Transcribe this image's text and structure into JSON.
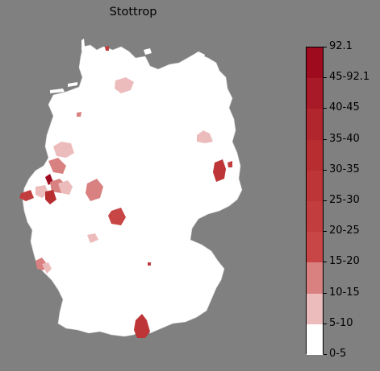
{
  "map": {
    "title": "Stottrop"
  },
  "legend": {
    "labels_top_to_bottom": [
      "92.1",
      "45-92.1",
      "40-45",
      "35-40",
      "30-35",
      "25-30",
      "20-25",
      "15-20",
      "10-15",
      "5-10",
      "0-5"
    ],
    "bins_top_to_bottom": [
      {
        "range": "45-92.1",
        "color": "#9e0a1e"
      },
      {
        "range": "40-45",
        "color": "#a81a28"
      },
      {
        "range": "35-40",
        "color": "#b0262c"
      },
      {
        "range": "30-35",
        "color": "#b82e30"
      },
      {
        "range": "25-30",
        "color": "#bd3536"
      },
      {
        "range": "20-25",
        "color": "#c23e3e"
      },
      {
        "range": "15-20",
        "color": "#c84646"
      },
      {
        "range": "10-15",
        "color": "#d98080"
      },
      {
        "range": "5-10",
        "color": "#ecbcbc"
      },
      {
        "range": "0-5",
        "color": "#ffffff"
      }
    ]
  },
  "colors": {
    "background": "#808080",
    "land": "#ffffff",
    "border": "#c8c8c8"
  }
}
